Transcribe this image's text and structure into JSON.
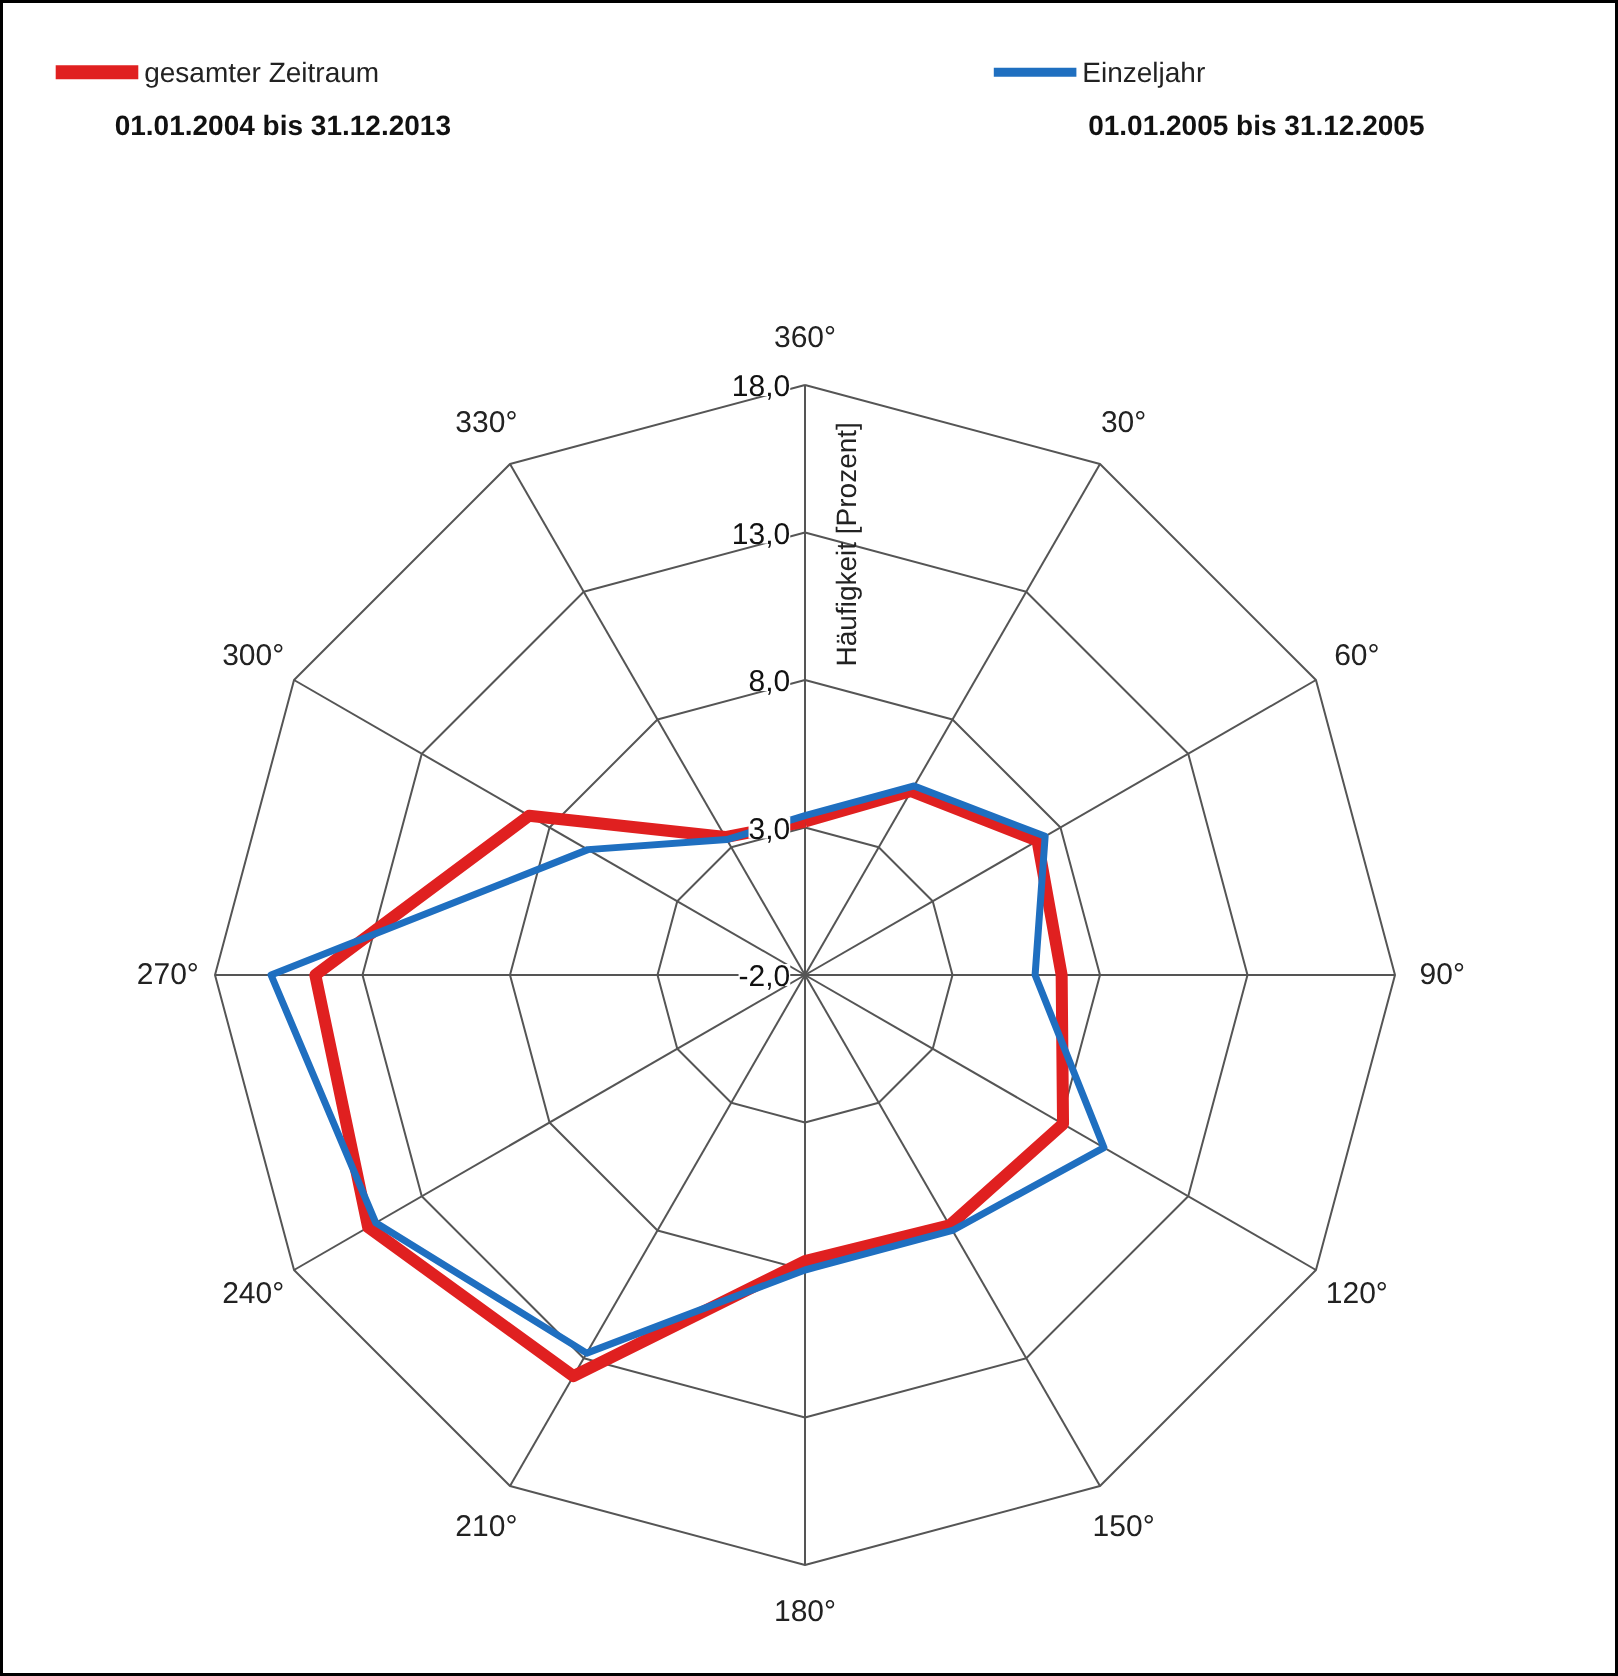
{
  "chart_data": {
    "type": "radar",
    "ylabel": "Häufigkeit [Prozent]",
    "categories": [
      "360°",
      "30°",
      "60°",
      "90°",
      "120°",
      "150°",
      "180°",
      "210°",
      "240°",
      "270°",
      "300°",
      "330°"
    ],
    "ylim": [
      -2,
      18
    ],
    "yticks": [
      {
        "value": -2,
        "label": "-2,0"
      },
      {
        "value": 3,
        "label": "3,0"
      },
      {
        "value": 8,
        "label": "8,0"
      },
      {
        "value": 13,
        "label": "13,0"
      },
      {
        "value": 18,
        "label": "18,0"
      }
    ],
    "grid": true,
    "legend": "top",
    "line_style": "solid",
    "marker": "none",
    "series": [
      {
        "name": "gesamter Zeitraum",
        "color": "#e02020",
        "values": [
          3.2,
          5.2,
          7.1,
          6.7,
          8.1,
          7.8,
          7.7,
          13.7,
          15.1,
          14.6,
          8.8,
          3.4
        ]
      },
      {
        "name": "Einzeljahr",
        "color": "#1f6fc0",
        "values": [
          3.4,
          5.4,
          7.4,
          5.8,
          9.7,
          8.0,
          8.0,
          12.8,
          14.8,
          16.1,
          6.5,
          3.3
        ]
      }
    ],
    "annotations": [
      "01.01.2004 bis 31.12.2013",
      "01.01.2005 bis 31.12.2005"
    ]
  }
}
